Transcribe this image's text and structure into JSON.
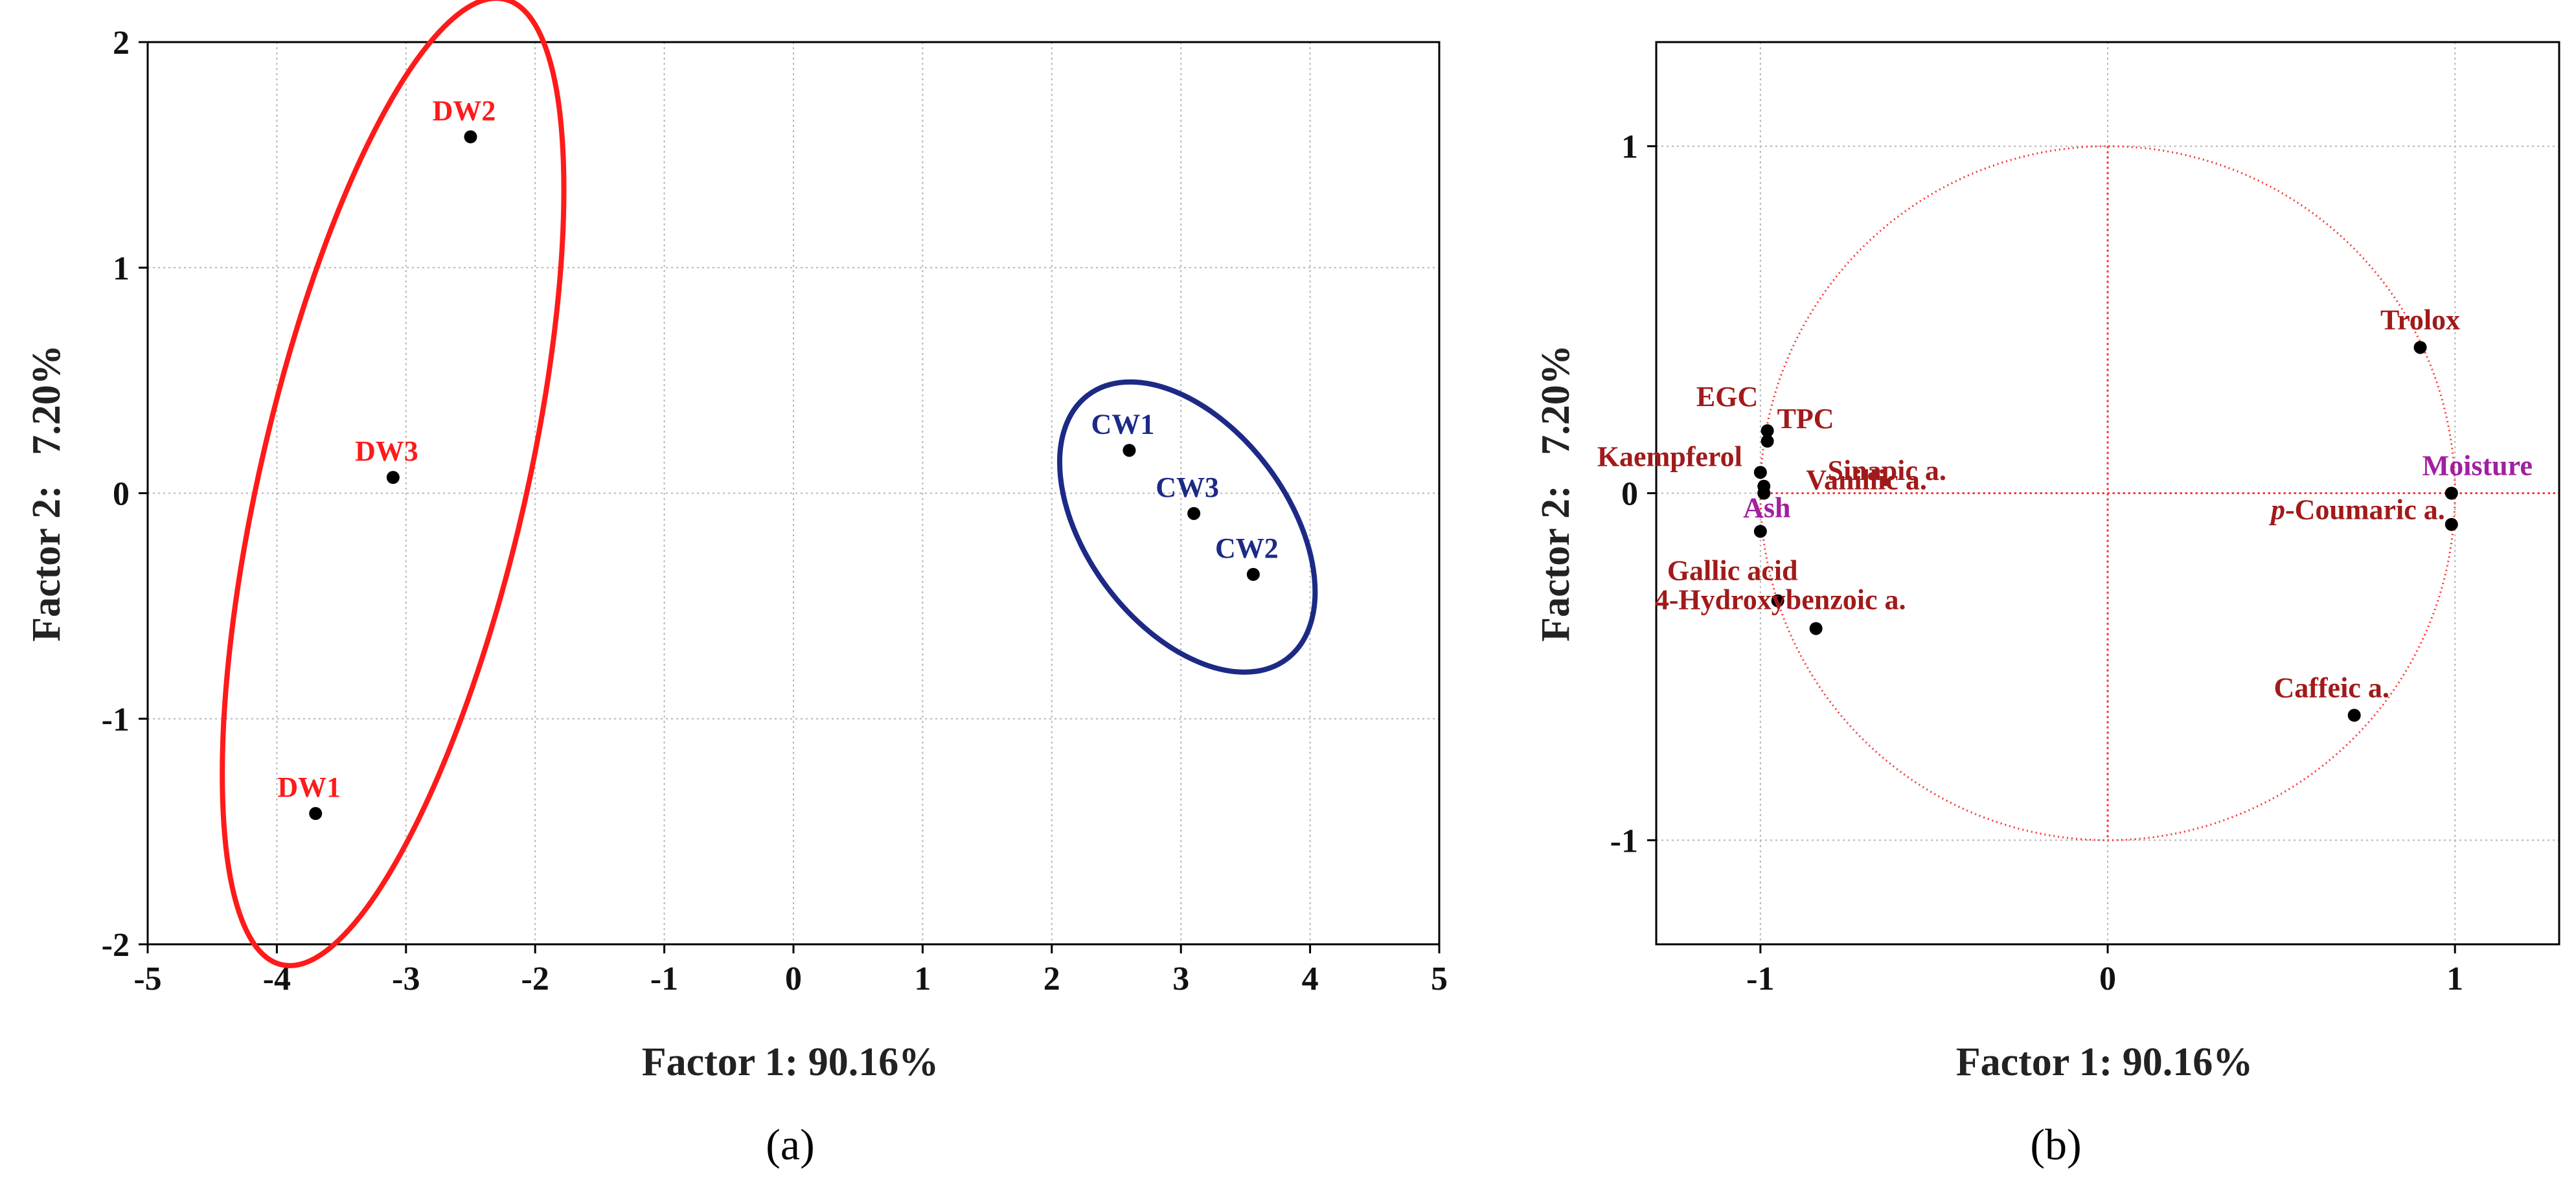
{
  "chart_data": [
    {
      "type": "scatter",
      "panel_label": "(a)",
      "xlabel": "Factor 1: 90.16%",
      "ylabel": "Factor 2:   7.20%",
      "xlim": [
        -5,
        5
      ],
      "ylim": [
        -2,
        2
      ],
      "xticks": [
        -5,
        -4,
        -3,
        -2,
        -1,
        0,
        1,
        2,
        3,
        4,
        5
      ],
      "yticks": [
        -2,
        -1,
        0,
        1,
        2
      ],
      "grid": true,
      "series": [
        {
          "name": "DW",
          "color": "#ff1a1a",
          "points": [
            {
              "label": "DW1",
              "x": -3.7,
              "y": -1.42
            },
            {
              "label": "DW2",
              "x": -2.5,
              "y": 1.58
            },
            {
              "label": "DW3",
              "x": -3.1,
              "y": 0.07
            }
          ]
        },
        {
          "name": "CW",
          "color": "#1c2a86",
          "points": [
            {
              "label": "CW1",
              "x": 2.6,
              "y": 0.19
            },
            {
              "label": "CW3",
              "x": 3.1,
              "y": -0.09
            },
            {
              "label": "CW2",
              "x": 3.56,
              "y": -0.36
            }
          ]
        }
      ]
    },
    {
      "type": "scatter",
      "panel_label": "(b)",
      "xlabel": "Factor 1: 90.16%",
      "ylabel": "Factor 2:   7.20%",
      "xlim": [
        -1.3,
        1.3
      ],
      "ylim": [
        -1.3,
        1.3
      ],
      "xticks": [
        -1,
        0,
        1
      ],
      "yticks": [
        -1,
        0,
        1
      ],
      "grid": true,
      "correlation_circle_radius": 1,
      "points": [
        {
          "label": "Trolox",
          "x": 0.9,
          "y": 0.42,
          "color": "#a11a1a"
        },
        {
          "label": "Moisture",
          "x": 0.99,
          "y": 0.0,
          "color": "#a020a0"
        },
        {
          "label": "p-Coumaric a.",
          "italic_prefix": "p",
          "label_rest": "-Coumaric a.",
          "x": 0.99,
          "y": -0.09,
          "color": "#a11a1a"
        },
        {
          "label": "Caffeic a.",
          "x": 0.71,
          "y": -0.64,
          "color": "#a11a1a"
        },
        {
          "label": "EGC",
          "x": -0.98,
          "y": 0.18,
          "color": "#a11a1a"
        },
        {
          "label": "TPC",
          "x": -0.98,
          "y": 0.15,
          "color": "#a11a1a"
        },
        {
          "label": "Kaempferol",
          "x": -1.0,
          "y": 0.06,
          "color": "#a11a1a"
        },
        {
          "label": "Sinapic a.",
          "x": -0.99,
          "y": 0.02,
          "color": "#a11a1a"
        },
        {
          "label": "Vanillic a.",
          "x": -0.99,
          "y": 0.0,
          "color": "#a11a1a"
        },
        {
          "label": "Ash",
          "x": -1.0,
          "y": -0.11,
          "color": "#a020a0"
        },
        {
          "label": "Gallic acid",
          "x": -0.95,
          "y": -0.31,
          "color": "#a11a1a"
        },
        {
          "label": "4-Hydroxybenzoic a.",
          "x": -0.84,
          "y": -0.39,
          "color": "#a11a1a"
        }
      ]
    }
  ]
}
